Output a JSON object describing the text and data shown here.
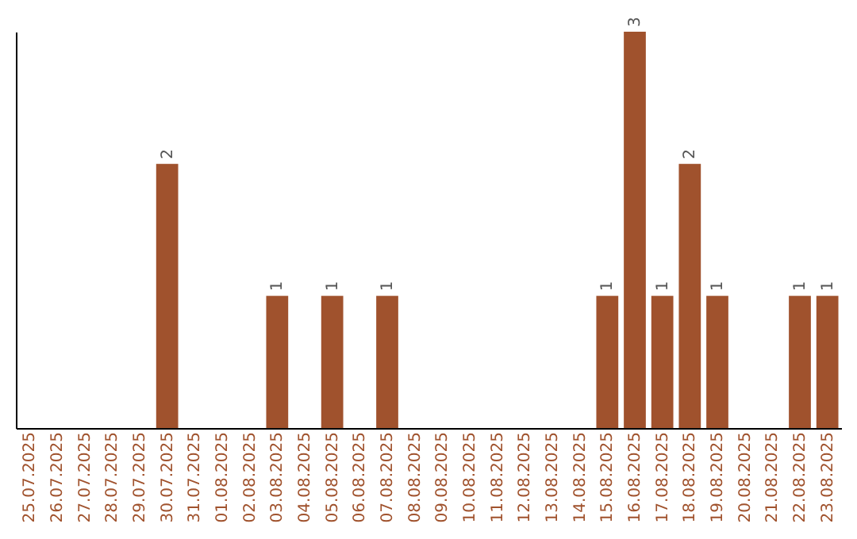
{
  "chart_data": {
    "type": "bar",
    "categories": [
      "25.07.2025",
      "26.07.2025",
      "27.07.2025",
      "28.07.2025",
      "29.07.2025",
      "30.07.2025",
      "31.07.2025",
      "01.08.2025",
      "02.08.2025",
      "03.08.2025",
      "04.08.2025",
      "05.08.2025",
      "06.08.2025",
      "07.08.2025",
      "08.08.2025",
      "09.08.2025",
      "10.08.2025",
      "11.08.2025",
      "12.08.2025",
      "13.08.2025",
      "14.08.2025",
      "15.08.2025",
      "16.08.2025",
      "17.08.2025",
      "18.08.2025",
      "19.08.2025",
      "20.08.2025",
      "21.08.2025",
      "22.08.2025",
      "23.08.2025"
    ],
    "values": [
      0,
      0,
      0,
      0,
      0,
      2,
      0,
      0,
      0,
      1,
      0,
      1,
      0,
      1,
      0,
      0,
      0,
      0,
      0,
      0,
      0,
      1,
      3,
      1,
      2,
      1,
      0,
      0,
      1,
      1
    ],
    "value_labels": [
      null,
      null,
      null,
      null,
      null,
      "2",
      null,
      null,
      null,
      "1",
      null,
      "1",
      null,
      "1",
      null,
      null,
      null,
      null,
      null,
      null,
      null,
      "1",
      "3",
      "1",
      "2",
      "1",
      null,
      null,
      "1",
      "1"
    ],
    "color": "#a0522d",
    "tick_labels": "x",
    "grid": false
  }
}
